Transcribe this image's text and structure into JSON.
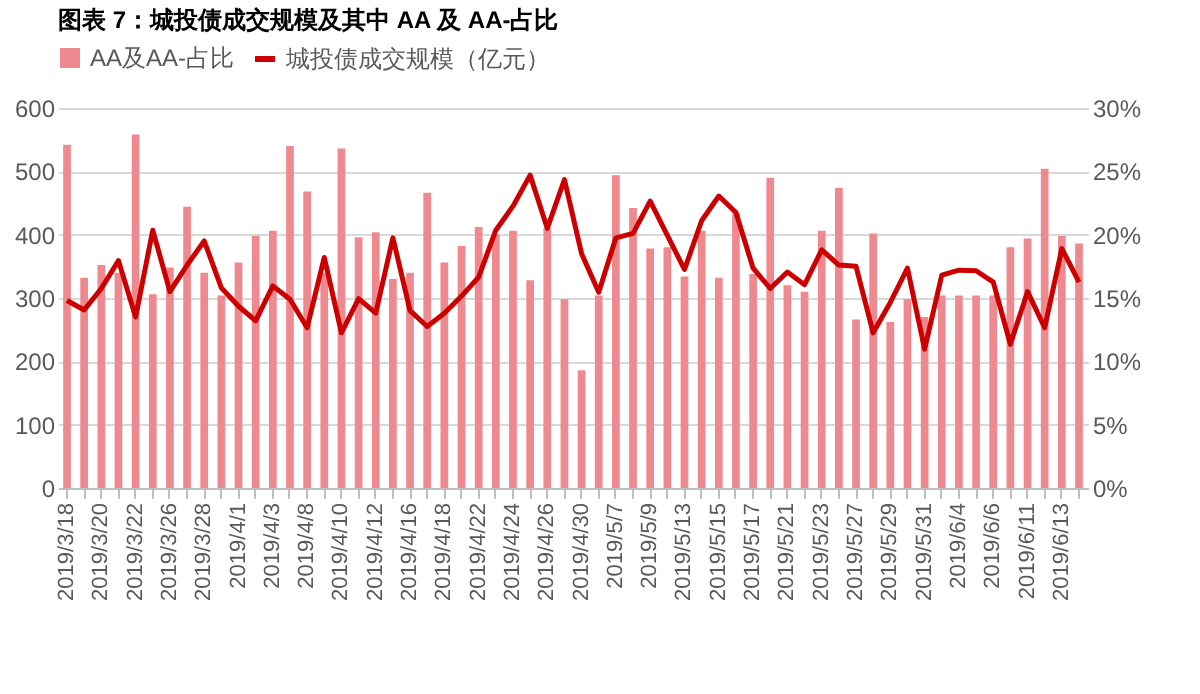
{
  "chart_data": {
    "type": "bar",
    "title": "图表 7：城投债成交规模及其中 AA 及 AA-占比",
    "categories": [
      "2019/3/18",
      null,
      "2019/3/20",
      null,
      "2019/3/22",
      null,
      "2019/3/26",
      null,
      "2019/3/28",
      null,
      "2019/4/1",
      null,
      "2019/4/3",
      null,
      "2019/4/8",
      null,
      "2019/4/10",
      null,
      "2019/4/12",
      null,
      "2019/4/16",
      null,
      "2019/4/18",
      null,
      "2019/4/22",
      null,
      "2019/4/24",
      null,
      "2019/4/26",
      null,
      "2019/4/30",
      null,
      "2019/5/7",
      null,
      "2019/5/9",
      null,
      "2019/5/13",
      null,
      "2019/5/15",
      null,
      "2019/5/17",
      null,
      "2019/5/21",
      null,
      "2019/5/23",
      null,
      "2019/5/27",
      null,
      "2019/5/29",
      null,
      "2019/5/31",
      null,
      "2019/6/4",
      null,
      "2019/6/6",
      null,
      "2019/6/11",
      null,
      "2019/6/13",
      null
    ],
    "series": [
      {
        "name": "AA及AA-占比",
        "axis": "y2",
        "color": "#ee8a8f",
        "values": [
          27.1,
          16.6,
          17.6,
          17,
          27.9,
          15.3,
          17.4,
          22.2,
          17,
          15.2,
          17.8,
          19.9,
          20.3,
          27,
          23.4,
          17,
          26.8,
          19.8,
          20.2,
          16.5,
          17,
          23.3,
          17.8,
          19.1,
          20.6,
          20,
          20.3,
          16.4,
          20.5,
          14.9,
          9.3,
          15.2,
          24.7,
          22.1,
          18.9,
          19,
          16.7,
          20.3,
          16.6,
          21.7,
          16.9,
          24.5,
          16,
          15.5,
          20.3,
          23.7,
          13.3,
          20.1,
          13.1,
          14.9,
          13.5,
          15.2,
          15.2,
          15.2,
          15.2,
          19,
          19.7,
          25.2,
          19.9,
          19.3
        ]
      },
      {
        "name": "城投债成交规模（亿元）",
        "type": "line",
        "color": "#cc0000",
        "values": [
          296,
          281,
          315,
          359,
          270,
          407,
          310,
          352,
          390,
          316,
          287,
          264,
          319,
          298,
          253,
          364,
          245,
          299,
          276,
          395,
          280,
          255,
          276,
          303,
          333,
          407,
          445,
          494,
          410,
          487,
          370,
          309,
          395,
          402,
          453,
          399,
          345,
          422,
          461,
          435,
          347,
          315,
          341,
          321,
          376,
          352,
          350,
          245,
          293,
          347,
          219,
          336,
          344,
          343,
          325,
          227,
          310,
          253,
          378,
          325
        ]
      }
    ],
    "ylim": [
      0,
      600
    ],
    "yticks": [
      0,
      100,
      200,
      300,
      400,
      500,
      600
    ],
    "y2lim": [
      0,
      30
    ],
    "y2ticks": [
      {
        "value": 0,
        "label": "0%"
      },
      {
        "value": 5,
        "label": "5%"
      },
      {
        "value": 10,
        "label": "10%"
      },
      {
        "value": 15,
        "label": "15%"
      },
      {
        "value": 20,
        "label": "20%"
      },
      {
        "value": 25,
        "label": "25%"
      },
      {
        "value": 30,
        "label": "30%"
      }
    ],
    "grid": "y",
    "legend": "top"
  }
}
